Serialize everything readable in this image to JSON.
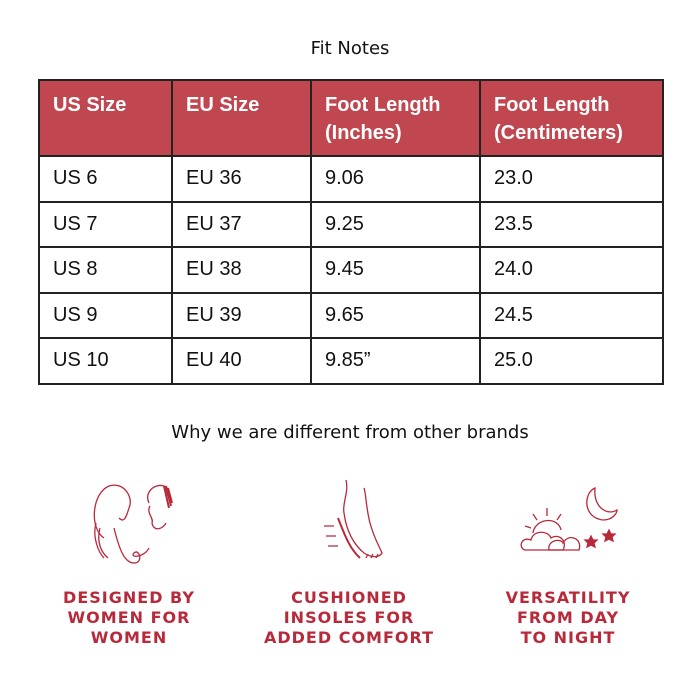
{
  "title": "Fit Notes",
  "table": {
    "headers": [
      "US Size",
      "EU Size",
      "Foot Length (Inches)",
      "Foot Length (Centimeters)"
    ],
    "rows": [
      [
        "US 6",
        "EU 36",
        "9.06",
        "23.0"
      ],
      [
        "US 7",
        "EU 37",
        "9.25",
        "23.5"
      ],
      [
        "US 8",
        "EU 38",
        "9.45",
        "24.0"
      ],
      [
        "US 9",
        "EU 39",
        "9.65",
        "24.5"
      ],
      [
        "US 10",
        "EU 40",
        "9.85”",
        "25.0"
      ]
    ]
  },
  "subtitle": "Why we are different from other brands",
  "features": [
    {
      "icon": "women-faces-icon",
      "label": "DESIGNED BY\nWOMEN FOR\nWOMEN"
    },
    {
      "icon": "foot-cushion-icon",
      "label": "CUSHIONED\nINSOLES FOR\nADDED COMFORT"
    },
    {
      "icon": "sun-moon-icon",
      "label": "VERSATILITY\nFROM DAY\nTO NIGHT"
    }
  ],
  "colors": {
    "header": "#c0464f",
    "accent": "#b8293a"
  }
}
